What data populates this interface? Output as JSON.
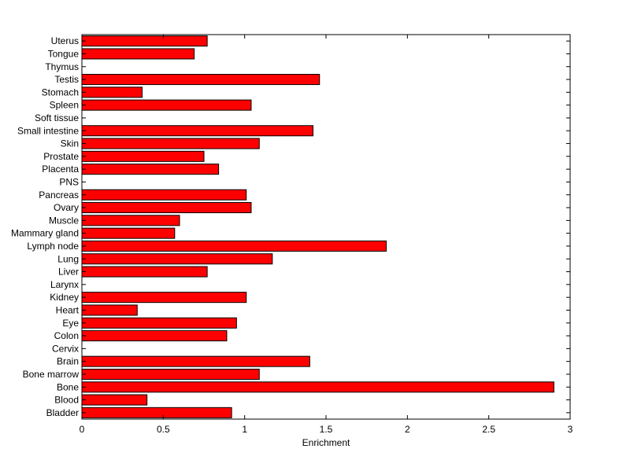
{
  "chart_data": {
    "type": "bar",
    "orientation": "horizontal",
    "title": "",
    "xlabel": "Enrichment",
    "ylabel": "",
    "xlim": [
      0,
      3
    ],
    "xticks": [
      0,
      0.5,
      1,
      1.5,
      2,
      2.5,
      3
    ],
    "xtick_labels": [
      "0",
      "0.5",
      "1",
      "1.5",
      "2",
      "2.5",
      "3"
    ],
    "grid": false,
    "legend": "none",
    "bar_color": "#ff0000",
    "categories": [
      "Bladder",
      "Blood",
      "Bone",
      "Bone marrow",
      "Brain",
      "Cervix",
      "Colon",
      "Eye",
      "Heart",
      "Kidney",
      "Larynx",
      "Liver",
      "Lung",
      "Lymph node",
      "Mammary gland",
      "Muscle",
      "Ovary",
      "Pancreas",
      "PNS",
      "Placenta",
      "Prostate",
      "Skin",
      "Small intestine",
      "Soft tissue",
      "Spleen",
      "Stomach",
      "Testis",
      "Thymus",
      "Tongue",
      "Uterus"
    ],
    "values": [
      0.92,
      0.4,
      2.9,
      1.09,
      1.4,
      0,
      0.89,
      0.95,
      0.34,
      1.01,
      0,
      0.77,
      1.17,
      1.87,
      0.57,
      0.6,
      1.04,
      1.01,
      0,
      0.84,
      0.75,
      1.09,
      1.42,
      0,
      1.04,
      0.37,
      1.46,
      0,
      0.69,
      0.77
    ]
  }
}
